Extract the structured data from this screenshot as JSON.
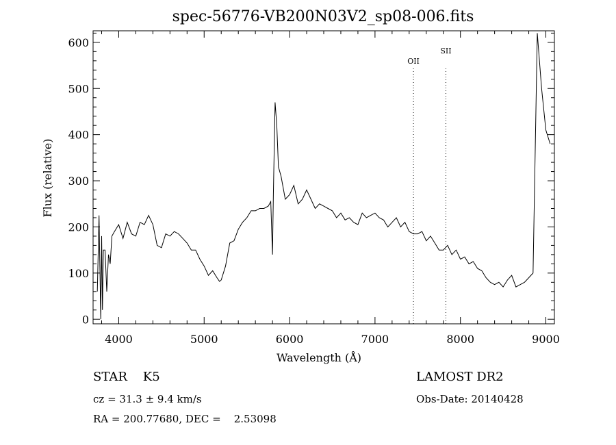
{
  "chart_data": {
    "type": "line",
    "title": "spec-56776-VB200N03V2_sp08-006.fits",
    "xlabel": "Wavelength (Å)",
    "ylabel": "Flux (relative)",
    "xlim": [
      3700,
      9100
    ],
    "ylim": [
      -10,
      625
    ],
    "x_ticks": [
      4000,
      5000,
      6000,
      7000,
      8000,
      9000
    ],
    "y_ticks": [
      0,
      100,
      200,
      300,
      400,
      500,
      600
    ],
    "grid": false,
    "lines": [
      {
        "label": "OII",
        "x": 7450
      },
      {
        "label": "SII",
        "x": 7830
      }
    ],
    "series": [
      {
        "x": [
          3750,
          3770,
          3790,
          3800,
          3810,
          3820,
          3840,
          3860,
          3880,
          3900,
          3920,
          3950,
          4000,
          4050,
          4100,
          4150,
          4200,
          4250,
          4300,
          4350,
          4400,
          4450,
          4500,
          4550,
          4600,
          4650,
          4700,
          4750,
          4800,
          4850,
          4900,
          4950,
          5000,
          5050,
          5100,
          5150,
          5180,
          5200,
          5250,
          5300,
          5350,
          5400,
          5450,
          5500,
          5550,
          5600,
          5650,
          5700,
          5750,
          5780,
          5800,
          5810,
          5830,
          5850,
          5870,
          5900,
          5950,
          6000,
          6050,
          6100,
          6150,
          6200,
          6250,
          6300,
          6350,
          6400,
          6450,
          6500,
          6550,
          6600,
          6650,
          6700,
          6750,
          6800,
          6850,
          6900,
          6950,
          7000,
          7050,
          7100,
          7150,
          7200,
          7250,
          7300,
          7350,
          7400,
          7450,
          7500,
          7550,
          7600,
          7650,
          7700,
          7750,
          7800,
          7850,
          7900,
          7950,
          8000,
          8050,
          8100,
          8150,
          8200,
          8250,
          8300,
          8350,
          8400,
          8450,
          8500,
          8550,
          8600,
          8650,
          8700,
          8750,
          8800,
          8850,
          8900,
          8950,
          9000,
          9050
        ],
        "values": [
          60,
          225,
          0,
          180,
          20,
          150,
          150,
          60,
          140,
          120,
          180,
          190,
          205,
          175,
          210,
          185,
          180,
          210,
          205,
          225,
          205,
          160,
          155,
          185,
          180,
          190,
          185,
          175,
          165,
          150,
          150,
          130,
          115,
          95,
          105,
          90,
          82,
          85,
          115,
          165,
          170,
          195,
          210,
          220,
          235,
          235,
          240,
          240,
          245,
          255,
          140,
          270,
          470,
          420,
          330,
          310,
          260,
          270,
          290,
          250,
          260,
          280,
          260,
          240,
          250,
          245,
          240,
          235,
          220,
          230,
          215,
          220,
          210,
          205,
          230,
          220,
          225,
          230,
          220,
          215,
          200,
          210,
          220,
          200,
          210,
          190,
          185,
          185,
          190,
          170,
          180,
          165,
          150,
          150,
          160,
          140,
          150,
          130,
          135,
          120,
          125,
          110,
          105,
          90,
          80,
          75,
          80,
          70,
          85,
          95,
          70,
          75,
          80,
          90,
          100,
          620,
          500,
          410,
          380
        ]
      }
    ]
  },
  "info": {
    "object": "STAR    K5",
    "cz": "cz = 31.3 ± 9.4 km/s",
    "radec": "RA = 200.77680, DEC =    2.53098",
    "survey": "LAMOST DR2",
    "obsdate": "Obs-Date: 20140428"
  }
}
